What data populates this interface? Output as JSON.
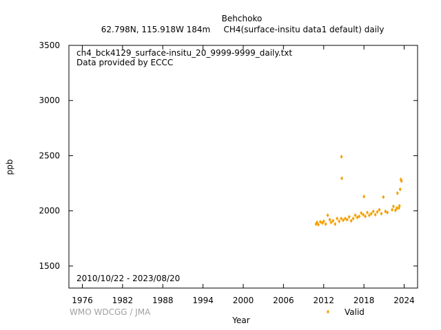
{
  "header": {
    "station": "Behchoko",
    "coords": "62.798N, 115.918W 184m",
    "series_desc": "CH4(surface-insitu data1 default) daily"
  },
  "plot": {
    "filename": "ch4_bck4129_surface-insitu_20_9999-9999_daily.txt",
    "provider": "Data provided by ECCC",
    "date_range": "2010/10/22 - 2023/08/20",
    "credit": "WMO WDCGG / JMA",
    "legend_label": "Valid"
  },
  "colors": {
    "data": "#f5a000",
    "frame": "#000000",
    "credit": "#a0a0a0"
  },
  "chart_data": {
    "type": "scatter",
    "title": "Behchoko",
    "xlabel": "Year",
    "ylabel": "ppb",
    "xlim": [
      1974,
      2026
    ],
    "ylim": [
      1300,
      3500
    ],
    "xticks": [
      1976,
      1982,
      1988,
      1994,
      2000,
      2006,
      2012,
      2018,
      2024
    ],
    "yticks": [
      1500,
      2000,
      2500,
      3000,
      3500
    ],
    "grid": false,
    "legend": "bottom-right",
    "series": [
      {
        "name": "Valid",
        "marker": "diamond",
        "x": [
          2010.85,
          2011.0,
          2011.2,
          2011.5,
          2011.8,
          2012.0,
          2012.3,
          2012.6,
          2012.9,
          2013.1,
          2013.4,
          2013.7,
          2014.0,
          2014.3,
          2014.6,
          2014.65,
          2014.7,
          2014.9,
          2015.2,
          2015.5,
          2015.8,
          2016.1,
          2016.4,
          2016.7,
          2017.0,
          2017.3,
          2017.6,
          2017.9,
          2018.0,
          2018.2,
          2018.5,
          2018.8,
          2019.1,
          2019.4,
          2019.7,
          2020.0,
          2020.3,
          2020.6,
          2020.9,
          2021.2,
          2021.5,
          2022.2,
          2022.4,
          2022.7,
          2022.9,
          2023.0,
          2023.2,
          2023.3,
          2023.4,
          2023.5,
          2023.6
        ],
        "y": [
          1880,
          1895,
          1875,
          1900,
          1890,
          1905,
          1880,
          1960,
          1920,
          1895,
          1910,
          1880,
          1930,
          1905,
          1930,
          2490,
          2295,
          1915,
          1930,
          1920,
          1945,
          1910,
          1930,
          1960,
          1940,
          1950,
          1980,
          1965,
          2130,
          1950,
          1985,
          1960,
          1975,
          1995,
          1965,
          1990,
          2010,
          1975,
          2125,
          1995,
          1985,
          2010,
          2040,
          2005,
          2025,
          2160,
          2025,
          2045,
          2195,
          2285,
          2270
        ]
      }
    ]
  }
}
